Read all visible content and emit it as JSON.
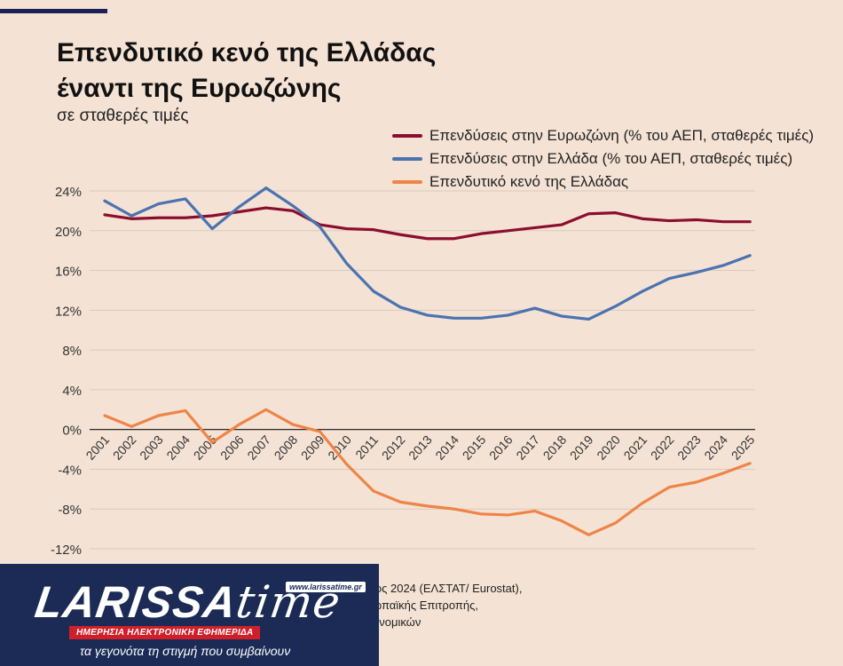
{
  "header": {
    "title_line1": "Επενδυτικό κενό της Ελλάδας",
    "title_line2": "έναντι της Ευρωζώνης",
    "subtitle": "σε σταθερές τιμές"
  },
  "colors": {
    "background": "#f4e3d5",
    "accent_bar": "#1b2057",
    "eurozone": "#8b0e2e",
    "greece": "#4a73b0",
    "gap": "#ef8447",
    "grid": "#d9cabd"
  },
  "chart_data": {
    "type": "line",
    "x": [
      "2001",
      "2002",
      "2003",
      "2004",
      "2005",
      "2006",
      "2007",
      "2008",
      "2009",
      "2010",
      "2011",
      "2012",
      "2013",
      "2014",
      "2015",
      "2016",
      "2017",
      "2018",
      "2019",
      "2020",
      "2021",
      "2022",
      "2023",
      "2024",
      "2025"
    ],
    "ylim": [
      -12,
      24
    ],
    "yticks": [
      24,
      20,
      16,
      12,
      8,
      4,
      0,
      -4,
      -8,
      -12
    ],
    "ytick_labels": [
      "24%",
      "20%",
      "16%",
      "12%",
      "8%",
      "4%",
      "0%",
      "-4%",
      "-8%",
      "-12%"
    ],
    "grid": true,
    "legend_position": "top-right",
    "series": [
      {
        "name": "Επενδύσεις στην Ευρωζώνη (% του ΑΕΠ, σταθερές τιμές)",
        "color": "#8b0e2e",
        "values": [
          21.6,
          21.2,
          21.3,
          21.3,
          21.5,
          21.9,
          22.3,
          22.0,
          20.6,
          20.2,
          20.1,
          19.6,
          19.2,
          19.2,
          19.7,
          20.0,
          20.3,
          20.6,
          21.7,
          21.8,
          21.2,
          21.0,
          21.1,
          20.9,
          20.9
        ]
      },
      {
        "name": "Επενδύσεις στην Ελλάδα (% του ΑΕΠ, σταθερές τιμές)",
        "color": "#4a73b0",
        "values": [
          23.0,
          21.5,
          22.7,
          23.2,
          20.2,
          22.4,
          24.3,
          22.5,
          20.4,
          16.7,
          13.9,
          12.3,
          11.5,
          11.2,
          11.2,
          11.5,
          12.2,
          11.4,
          11.1,
          12.4,
          13.9,
          15.2,
          15.8,
          16.5,
          17.5
        ]
      },
      {
        "name": "Επενδυτικό κενό της Ελλάδας",
        "color": "#ef8447",
        "values": [
          1.4,
          0.3,
          1.4,
          1.9,
          -1.3,
          0.5,
          2.0,
          0.5,
          -0.2,
          -3.5,
          -6.2,
          -7.3,
          -7.7,
          -8.0,
          -8.5,
          -8.6,
          -8.2,
          -9.2,
          -10.6,
          -9.4,
          -7.4,
          -5.8,
          -5.3,
          -4.4,
          -3.4
        ]
      }
    ]
  },
  "source_text": "ιος 2024 (ΕΛΣΤΑΤ/ Eurostat),\nωπαϊκής Επιτροπής,\nονομικών",
  "logo": {
    "word": "LARISSA",
    "word2": "time",
    "url": "www.larissatime.gr",
    "strip": "ΗΜΕΡΗΣΙΑ ΗΛΕΚΤΡΟΝΙΚΗ ΕΦΗΜΕΡΙΔΑ",
    "tagline": "τα γεγονότα τη στιγμή που συμβαίνουν"
  }
}
